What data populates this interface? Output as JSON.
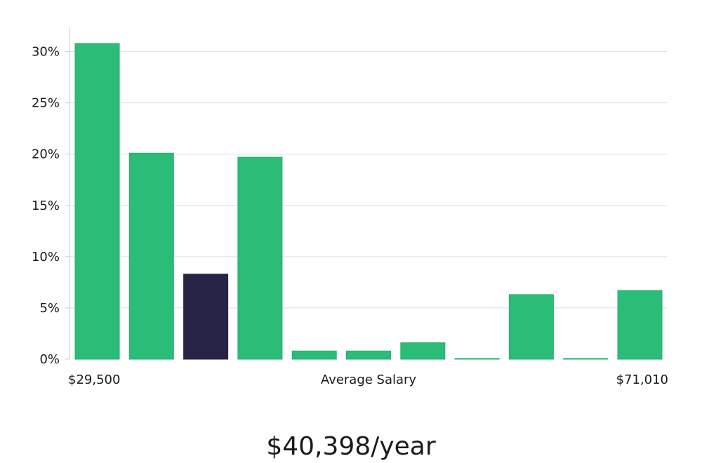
{
  "chart_data": {
    "type": "bar",
    "x_min_label": "$29,500",
    "x_max_label": "$71,010",
    "xlabel": "Average Salary",
    "ylim": [
      0,
      32.3
    ],
    "y_ticks": [
      0,
      5,
      10,
      15,
      20,
      25,
      30
    ],
    "y_tick_labels": [
      "0%",
      "5%",
      "10%",
      "15%",
      "20%",
      "25%",
      "30%"
    ],
    "values": [
      30.8,
      20.1,
      8.3,
      19.7,
      0.8,
      0.8,
      1.6,
      0.05,
      6.3,
      0.05,
      6.7
    ],
    "highlight_index": 2,
    "grid": true,
    "colors": {
      "bar": "#2bbd77",
      "bar_edge": "#22b06b",
      "highlight": "#272446",
      "grid": "#dddddd",
      "axis": "#cccccc"
    }
  },
  "summary": {
    "salary_text": "$40,398/year"
  }
}
